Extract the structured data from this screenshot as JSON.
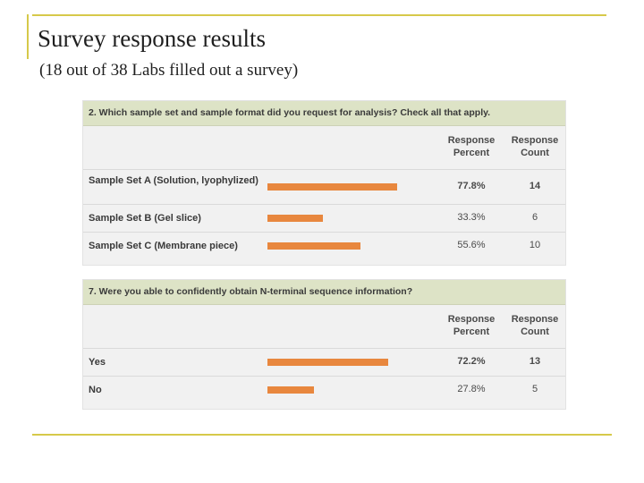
{
  "slide": {
    "title": "Survey response results",
    "subtitle": "(18 out of 38 Labs filled out a survey)"
  },
  "column_headers": {
    "percent": "Response Percent",
    "count": "Response Count"
  },
  "colors": {
    "bar": "#e8873e",
    "question_header": "#dde3c6",
    "frame": "#d6c94a"
  },
  "chart_data": [
    {
      "type": "bar",
      "title": "2. Which sample set and sample format did you request for analysis? Check all that apply.",
      "categories": [
        "Sample Set A (Solution, lyophylized)",
        "Sample Set B (Gel slice)",
        "Sample Set C (Membrane piece)"
      ],
      "values": [
        77.8,
        33.3,
        55.6
      ],
      "percent_labels": [
        "77.8%",
        "33.3%",
        "55.6%"
      ],
      "counts": [
        14,
        6,
        10
      ],
      "xlim": [
        0,
        100
      ]
    },
    {
      "type": "bar",
      "title": "7. Were you able to confidently obtain N-terminal sequence information?",
      "categories": [
        "Yes",
        "No"
      ],
      "values": [
        72.2,
        27.8
      ],
      "percent_labels": [
        "72.2%",
        "27.8%"
      ],
      "counts": [
        13,
        5
      ],
      "xlim": [
        0,
        100
      ]
    }
  ]
}
